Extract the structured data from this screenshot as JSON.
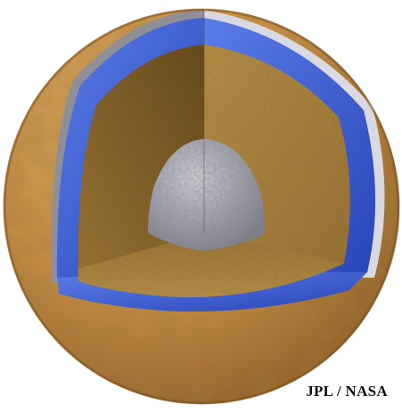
{
  "figure": {
    "credit": "JPL / NASA"
  },
  "colors": {
    "surface_light": "#e2b76e",
    "surface_mid": "#c98f45",
    "surface_dark": "#8a5a24",
    "mantle_light": "#bf9448",
    "mantle_mid": "#9c7330",
    "mantle_dark": "#5e4014",
    "ocean_light": "#5a7ce8",
    "ocean_dark": "#2a45b8",
    "ice_shell": "#d9d9e1",
    "core_light": "#d6d6de",
    "core_dark": "#7b7b86",
    "background": "#ffffff",
    "credit_text": "#111111"
  }
}
